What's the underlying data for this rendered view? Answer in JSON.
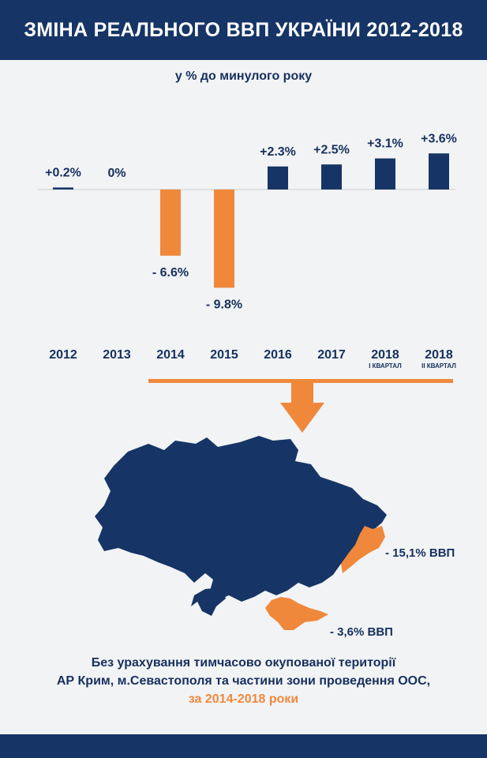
{
  "header": {
    "title": "ЗМІНА РЕАЛЬНОГО ВВП УКРАЇНИ 2012-2018"
  },
  "colors": {
    "navy": "#163566",
    "orange": "#f0883c",
    "background": "#f2f3f5"
  },
  "chart_data": {
    "type": "bar",
    "subtitle": "у % до минулого року",
    "categories": [
      "2012",
      "2013",
      "2014",
      "2015",
      "2016",
      "2017",
      "2018",
      "2018"
    ],
    "sublabels": [
      "",
      "",
      "",
      "",
      "",
      "",
      "І КВАРТАЛ",
      "ІІ КВАРТАЛ"
    ],
    "values": [
      0.2,
      0,
      -6.6,
      -9.8,
      2.3,
      2.5,
      3.1,
      3.6
    ],
    "value_labels": [
      "+0.2%",
      "0%",
      "- 6.6%",
      "- 9.8%",
      "+2.3%",
      "+2.5%",
      "+3.1%",
      "+3.6%"
    ],
    "positive_color": "#163566",
    "negative_color": "#f0883c",
    "ylim": [
      -10,
      4
    ],
    "grid": false,
    "legend": "none"
  },
  "map": {
    "donbas_label": "- 15,1% ВВП",
    "crimea_label": "- 3,6% ВВП"
  },
  "footnote": {
    "line1": "Без урахування тимчасово окупованої території",
    "line2": "АР Крим, м.Севастополя та частини зони проведення ООС,",
    "line3": "за 2014-2018 роки"
  }
}
